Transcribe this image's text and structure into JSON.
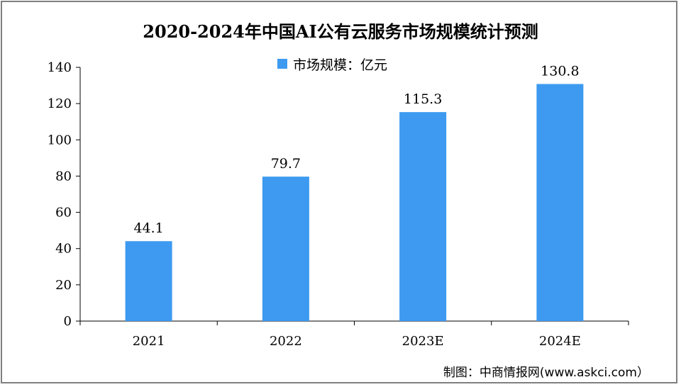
{
  "chart_data": {
    "type": "bar",
    "title": "2020-2024年中国AI公有云服务市场规模统计预测",
    "categories": [
      "2021",
      "2022",
      "2023E",
      "2024E"
    ],
    "series": [
      {
        "name": "市场规模：亿元",
        "values": [
          44.1,
          79.7,
          115.3,
          130.8
        ]
      }
    ],
    "data_labels": [
      "44.1",
      "79.7",
      "115.3",
      "130.8"
    ],
    "xlabel": "",
    "ylabel": "",
    "ylim": [
      0,
      140
    ],
    "yticks": [
      0,
      20,
      40,
      60,
      80,
      100,
      120,
      140
    ],
    "grid": false,
    "legend_position": "top-center",
    "bar_color": "#3d9af0",
    "credit": "制图：中商情报网(www.askci.com）"
  }
}
